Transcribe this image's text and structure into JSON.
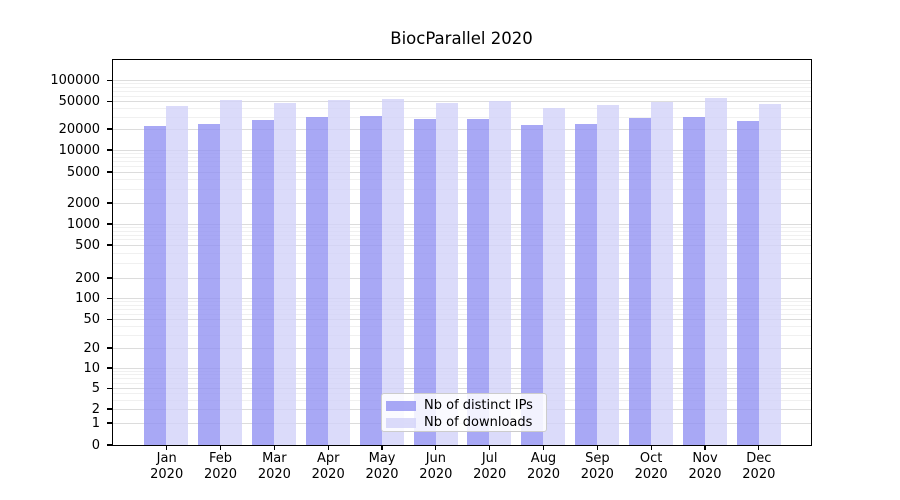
{
  "chart_data": {
    "type": "bar",
    "title": "BiocParallel 2020",
    "categories": [
      {
        "month": "Jan",
        "year": "2020"
      },
      {
        "month": "Feb",
        "year": "2020"
      },
      {
        "month": "Mar",
        "year": "2020"
      },
      {
        "month": "Apr",
        "year": "2020"
      },
      {
        "month": "May",
        "year": "2020"
      },
      {
        "month": "Jun",
        "year": "2020"
      },
      {
        "month": "Jul",
        "year": "2020"
      },
      {
        "month": "Aug",
        "year": "2020"
      },
      {
        "month": "Sep",
        "year": "2020"
      },
      {
        "month": "Oct",
        "year": "2020"
      },
      {
        "month": "Nov",
        "year": "2020"
      },
      {
        "month": "Dec",
        "year": "2020"
      }
    ],
    "series": [
      {
        "name": "Nb of distinct IPs",
        "color": "#9292f2",
        "values": [
          22300,
          23300,
          27100,
          29900,
          30600,
          27500,
          27600,
          22800,
          23600,
          28400,
          29600,
          26200
        ]
      },
      {
        "name": "Nb of downloads",
        "color": "#d2d2f9",
        "values": [
          42500,
          52000,
          46500,
          52500,
          54000,
          47300,
          50100,
          40200,
          44000,
          48500,
          56000,
          45500
        ]
      }
    ],
    "xlabel": "",
    "ylabel": "",
    "yticks": [
      0,
      1,
      2,
      5,
      10,
      20,
      50,
      100,
      200,
      500,
      1000,
      2000,
      5000,
      10000,
      20000,
      50000,
      100000
    ],
    "ylim": [
      0,
      100000
    ],
    "scale": "log-like with zero baseline",
    "grid": true,
    "legend_position": "inside bottom-center"
  }
}
